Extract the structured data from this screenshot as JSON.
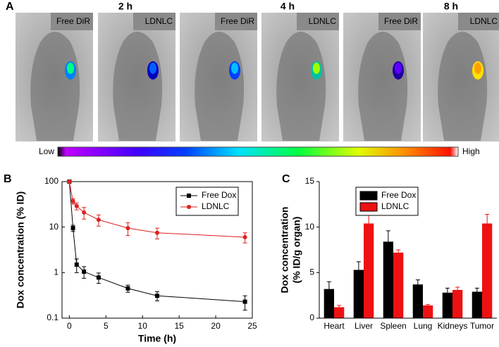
{
  "panel_a": {
    "letter": "A",
    "times": [
      "2 h",
      "4 h",
      "8 h"
    ],
    "images": [
      {
        "label": "Free DiR"
      },
      {
        "label": "LDNLC"
      },
      {
        "label": "Free DiR"
      },
      {
        "label": "LDNLC"
      },
      {
        "label": "Free DiR"
      },
      {
        "label": "LDNLC"
      }
    ],
    "colorbar": {
      "low": "Low",
      "high": "High"
    }
  },
  "chart_data": [
    {
      "type": "line",
      "panel": "B",
      "x_label": "Time (h)",
      "y_label": "Dox concentration (% ID)",
      "x": [
        0,
        0.5,
        1,
        2,
        4,
        8,
        12,
        24
      ],
      "series": [
        {
          "name": "Free Dox",
          "color": "#000000",
          "marker": "square",
          "values": [
            100,
            9.5,
            1.5,
            1.05,
            0.78,
            0.45,
            0.31,
            0.23
          ],
          "errors": [
            0,
            1.5,
            0.5,
            0.3,
            0.2,
            0.08,
            0.07,
            0.08
          ]
        },
        {
          "name": "LDNLC",
          "color": "#e02020",
          "marker": "circle",
          "values": [
            100,
            37,
            29,
            21,
            14.5,
            9.5,
            7.5,
            6
          ],
          "errors": [
            0,
            5,
            5,
            6,
            4,
            3,
            2,
            1.5
          ]
        }
      ],
      "xlim": [
        -1,
        25
      ],
      "xticks": [
        0,
        5,
        10,
        15,
        20,
        25
      ],
      "ylim": [
        0.1,
        100
      ],
      "yticks": [
        0.1,
        1,
        10,
        100
      ],
      "log_y": true,
      "legend": "top-right"
    },
    {
      "type": "bar",
      "panel": "C",
      "y_label": [
        "Dox concentration",
        "(% ID/g organ)"
      ],
      "categories": [
        "Heart",
        "Liver",
        "Spleen",
        "Lung",
        "Kidneys",
        "Tumor"
      ],
      "series": [
        {
          "name": "Free Dox",
          "color": "#000000",
          "values": [
            3.2,
            5.3,
            8.4,
            3.7,
            2.8,
            2.9
          ],
          "errors": [
            0.8,
            0.9,
            1.2,
            0.5,
            0.5,
            0.4
          ]
        },
        {
          "name": "LDNLC",
          "color": "#ee1111",
          "values": [
            1.2,
            10.4,
            7.2,
            1.4,
            3.1,
            10.4
          ],
          "errors": [
            0.2,
            1.2,
            0.3,
            0.1,
            0.3,
            1.0
          ]
        }
      ],
      "ylim": [
        0,
        15
      ],
      "yticks": [
        0,
        5,
        10,
        15
      ],
      "legend": "top-left"
    }
  ]
}
